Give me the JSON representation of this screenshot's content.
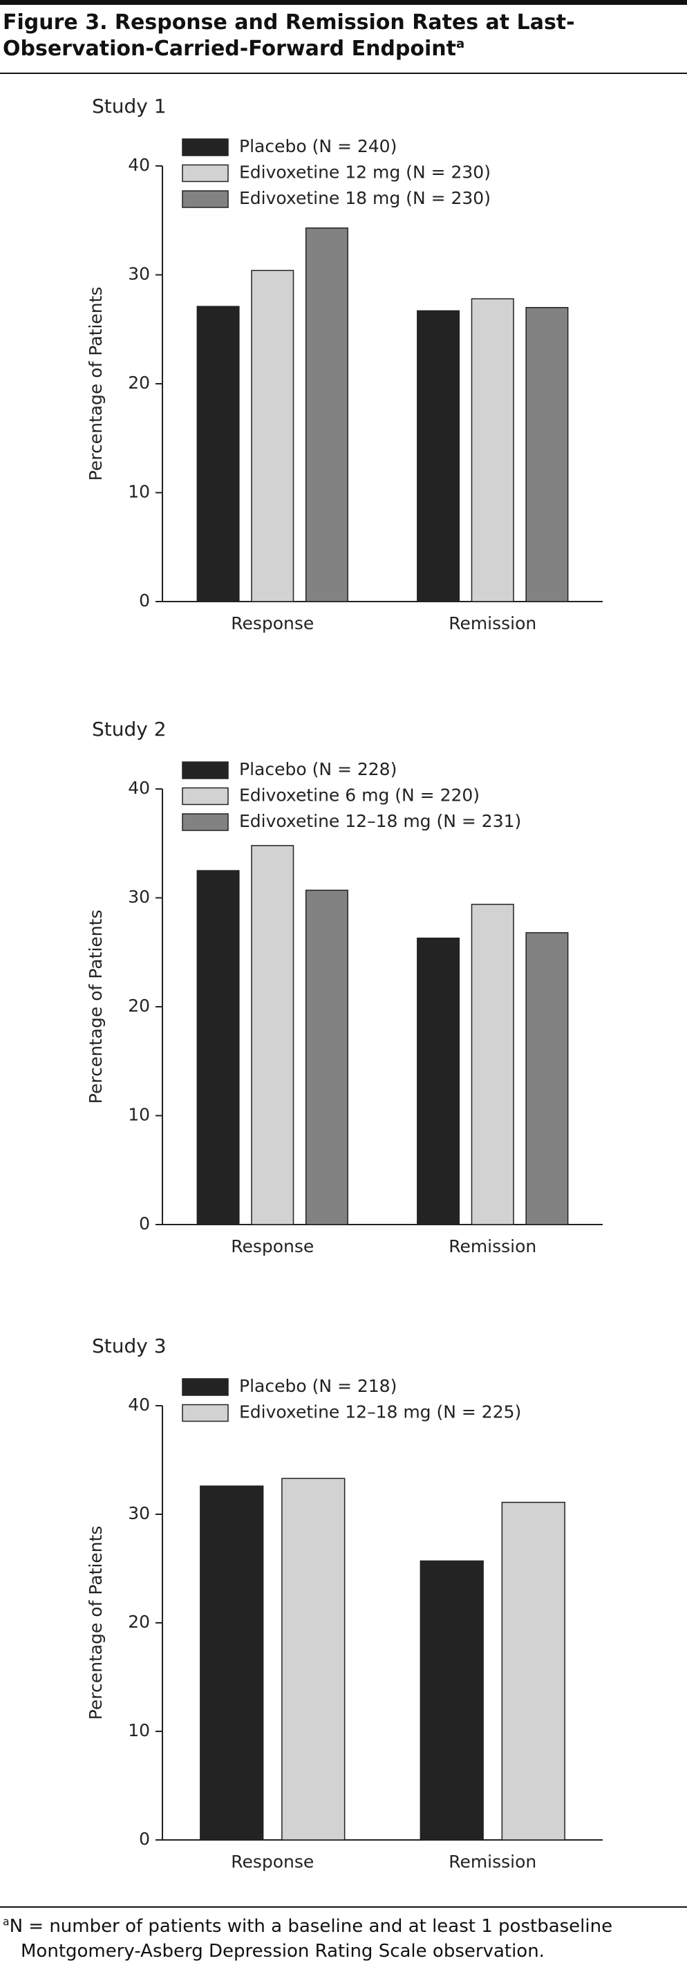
{
  "title": "Figure 3. Response and Remission Rates at Last-Observation-Carried-Forward Endpoint",
  "footnote": {
    "marker": "a",
    "text": "N = number of patients with a baseline and at least 1 postbaseline Montgomery-Asberg Depression Rating Scale observation."
  },
  "chart_data": [
    {
      "type": "bar",
      "title": "Study 1",
      "y_label": "Percentage of Patients",
      "categories": [
        "Response",
        "Remission"
      ],
      "series": [
        {
          "name": "Placebo (N = 240)",
          "color": "#232323",
          "values": [
            27.1,
            26.7
          ]
        },
        {
          "name": "Edivoxetine 12 mg (N = 230)",
          "color": "#d2d2d2",
          "values": [
            30.4,
            27.8
          ]
        },
        {
          "name": "Edivoxetine 18 mg (N = 230)",
          "color": "#828282",
          "values": [
            34.3,
            27.0
          ]
        }
      ],
      "ylim": [
        0,
        40
      ],
      "yticks": [
        0,
        10,
        20,
        30,
        40
      ]
    },
    {
      "type": "bar",
      "title": "Study 2",
      "y_label": "Percentage of Patients",
      "categories": [
        "Response",
        "Remission"
      ],
      "series": [
        {
          "name": "Placebo (N = 228)",
          "color": "#232323",
          "values": [
            32.5,
            26.3
          ]
        },
        {
          "name": "Edivoxetine 6 mg (N = 220)",
          "color": "#d2d2d2",
          "values": [
            34.8,
            29.4
          ]
        },
        {
          "name": "Edivoxetine 12–18 mg (N = 231)",
          "color": "#828282",
          "values": [
            30.7,
            26.8
          ]
        }
      ],
      "ylim": [
        0,
        40
      ],
      "yticks": [
        0,
        10,
        20,
        30,
        40
      ]
    },
    {
      "type": "bar",
      "title": "Study 3",
      "y_label": "Percentage of Patients",
      "categories": [
        "Response",
        "Remission"
      ],
      "series": [
        {
          "name": "Placebo (N = 218)",
          "color": "#232323",
          "values": [
            32.6,
            25.7
          ]
        },
        {
          "name": "Edivoxetine 12–18 mg (N = 225)",
          "color": "#d2d2d2",
          "values": [
            33.3,
            31.1
          ]
        }
      ],
      "ylim": [
        0,
        40
      ],
      "yticks": [
        0,
        10,
        20,
        30,
        40
      ]
    }
  ]
}
